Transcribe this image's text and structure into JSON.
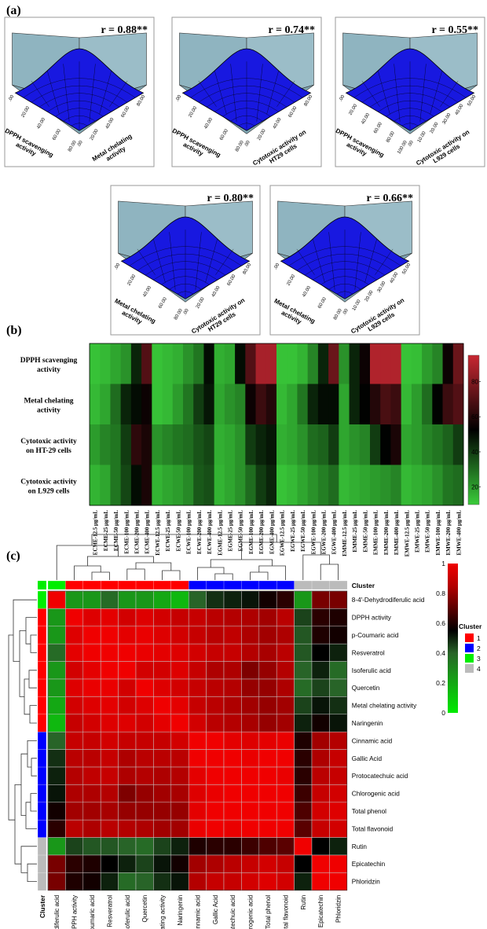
{
  "panel_a": {
    "label": "(a)",
    "plots": [
      {
        "r": "r = 0.88**",
        "x_label": [
          "DPPH scavenging",
          "activity"
        ],
        "y_label": [
          "Metal chelating",
          "activity"
        ],
        "x_ticks": [
          ".00",
          "20.00",
          "40.00",
          "60.00",
          "80.00"
        ],
        "y_ticks": [
          ".00",
          "20.00",
          "40.00",
          "60.00",
          "80.00"
        ]
      },
      {
        "r": "r = 0.74**",
        "x_label": [
          "DPPH scavenging",
          "activity"
        ],
        "y_label": [
          "Cytotoxic activity on",
          "HT29 cells"
        ],
        "x_ticks": [
          ".00",
          "20.00",
          "40.00",
          "60.00",
          "80.00"
        ],
        "y_ticks": [
          ".00",
          "20.00",
          "40.00",
          "60.00",
          "80.00"
        ]
      },
      {
        "r": "r = 0.55**",
        "x_label": [
          "DPPH scavenging",
          "activity"
        ],
        "y_label": [
          "Cytotoxic activity on",
          "L929 cells"
        ],
        "x_ticks": [
          ".00",
          "20.00",
          "40.00",
          "60.00",
          "80.00",
          "100.00"
        ],
        "y_ticks": [
          ".00",
          "10.00",
          "20.00",
          "30.00",
          "40.00",
          "50.00"
        ]
      },
      {
        "r": "r = 0.80**",
        "x_label": [
          "Metal chelating",
          "activity"
        ],
        "y_label": [
          "Cytotoxic activity on",
          "HT29 cells"
        ],
        "x_ticks": [
          ".00",
          "20.00",
          "40.00",
          "60.00",
          "80.00"
        ],
        "y_ticks": [
          ".00",
          "20.00",
          "40.00",
          "60.00",
          "80.00"
        ]
      },
      {
        "r": "r = 0.66**",
        "x_label": [
          "Metal chelating",
          "activity"
        ],
        "y_label": [
          "Cytotoxic activity on",
          "L929 cells"
        ],
        "x_ticks": [
          ".00",
          "20.00",
          "40.00",
          "60.00",
          "80.00"
        ],
        "y_ticks": [
          ".00",
          "10.00",
          "20.00",
          "30.00",
          "40.00",
          "50.00"
        ]
      }
    ]
  },
  "panel_b": {
    "label": "(b)"
  },
  "panel_c": {
    "label": "(c)"
  },
  "chart_data": [
    {
      "type": "heatmap",
      "title": "(b)",
      "rows": [
        [
          "DPPH scavenging",
          "activity"
        ],
        [
          "Metal chelating",
          "activity"
        ],
        [
          "Cytotoxic activity",
          "on HT-29 cells"
        ],
        [
          "Cytotoxic activity",
          "on L929 cells"
        ]
      ],
      "columns": [
        "ECME-12.5 µg/mL",
        "ECME-25 µg/mL",
        "ECME-50 µg/mL",
        "ECME-100 µg/mL",
        "ECME-200 µg/mL",
        "ECME-400 µg/mL",
        "ECWE-12.5 µg/mL",
        "ECWE-25 µg/mL",
        "ECWE-50 µg/mL",
        "ECWE-100 µg/mL",
        "ECWE-200 µg/mL",
        "ECWE-400 µg/mL",
        "EGME-12.5 µg/mL",
        "EGME-25 µg/mL",
        "EGME-50 µg/mL",
        "EGME-100 µg/mL",
        "EGME-200 µg/mL",
        "EGME-400 µg/mL",
        "EGWE-12.5 µg/mL",
        "EGWE-25 µg/mL",
        "EGWE-50 µg/mL",
        "EGWE-100 µg/mL",
        "EGWE-200 µg/mL",
        "EGWE-400 µg/mL",
        "EMME-12.5 µg/mL",
        "EMME-25 µg/mL",
        "EMME-50 µg/mL",
        "EMME-100 µg/mL",
        "EMME-200 µg/mL",
        "EMME-400 µg/mL",
        "EMWE-12.5 µg/mL",
        "EMWE-25 µg/mL",
        "EMWE-50 µg/mL",
        "EMWE-100 µg/mL",
        "EMWE-200 µg/mL",
        "EMWE-400 µg/mL"
      ],
      "values": [
        [
          12,
          14,
          18,
          22,
          45,
          70,
          12,
          14,
          16,
          22,
          28,
          50,
          16,
          18,
          50,
          70,
          88,
          88,
          12,
          12,
          15,
          25,
          45,
          75,
          22,
          45,
          55,
          90,
          90,
          90,
          12,
          13,
          20,
          25,
          55,
          75
        ],
        [
          14,
          18,
          30,
          45,
          50,
          55,
          12,
          14,
          20,
          28,
          40,
          48,
          18,
          22,
          25,
          55,
          65,
          60,
          14,
          18,
          28,
          45,
          50,
          50,
          18,
          45,
          52,
          60,
          68,
          65,
          14,
          20,
          30,
          52,
          65,
          70
        ],
        [
          20,
          25,
          28,
          40,
          62,
          58,
          22,
          25,
          28,
          30,
          35,
          38,
          16,
          18,
          22,
          40,
          45,
          48,
          16,
          18,
          22,
          30,
          32,
          40,
          18,
          22,
          25,
          40,
          52,
          58,
          18,
          20,
          25,
          28,
          32,
          40
        ],
        [
          15,
          18,
          28,
          38,
          50,
          58,
          15,
          18,
          20,
          24,
          34,
          36,
          15,
          18,
          22,
          30,
          40,
          45,
          12,
          14,
          18,
          22,
          26,
          30,
          14,
          16,
          18,
          20,
          22,
          25,
          14,
          16,
          18,
          22,
          28,
          30
        ]
      ],
      "colorbar": {
        "ticks": [
          20,
          40,
          60,
          80
        ],
        "range": [
          10,
          95
        ]
      }
    },
    {
      "type": "heatmap",
      "title": "(c)",
      "labels": [
        "8-4'-Dehydrodiferulic acid",
        "DPPH activity",
        "p-Coumaric acid",
        "Resveratrol",
        "Isoferulic acid",
        "Quercetin",
        "Metal chelating activity",
        "Naringenin",
        "Cinnamic acid",
        "Gallic Acid",
        "Protocatechuic acid",
        "Chlorogenic acid",
        "Total phenol",
        "Total flavonoid",
        "Rutin",
        "Epicatechin",
        "Phloridzin"
      ],
      "clusters": [
        3,
        1,
        1,
        1,
        1,
        1,
        1,
        1,
        2,
        2,
        2,
        2,
        2,
        2,
        4,
        4,
        4
      ],
      "values": [
        [
          1.0,
          0.25,
          0.25,
          0.38,
          0.25,
          0.25,
          0.2,
          0.15,
          0.4,
          0.48,
          0.5,
          0.52,
          0.58,
          0.62,
          0.25,
          0.75,
          0.75
        ],
        [
          0.25,
          1.0,
          0.92,
          0.93,
          0.9,
          0.92,
          0.9,
          0.88,
          0.88,
          0.86,
          0.85,
          0.84,
          0.82,
          0.86,
          0.45,
          0.62,
          0.6
        ],
        [
          0.25,
          0.92,
          1.0,
          0.95,
          0.93,
          0.94,
          0.92,
          0.9,
          0.88,
          0.86,
          0.87,
          0.84,
          0.82,
          0.84,
          0.42,
          0.6,
          0.58
        ],
        [
          0.38,
          0.93,
          0.95,
          1.0,
          0.95,
          0.94,
          0.93,
          0.92,
          0.9,
          0.88,
          0.88,
          0.85,
          0.83,
          0.86,
          0.42,
          0.55,
          0.5
        ],
        [
          0.25,
          0.9,
          0.93,
          0.95,
          1.0,
          0.9,
          0.9,
          0.92,
          0.88,
          0.84,
          0.84,
          0.76,
          0.8,
          0.85,
          0.4,
          0.5,
          0.38
        ],
        [
          0.25,
          0.92,
          0.94,
          0.94,
          0.9,
          1.0,
          0.92,
          0.9,
          0.88,
          0.86,
          0.85,
          0.8,
          0.8,
          0.84,
          0.38,
          0.45,
          0.4
        ],
        [
          0.2,
          0.9,
          0.92,
          0.93,
          0.9,
          0.92,
          1.0,
          0.93,
          0.88,
          0.86,
          0.84,
          0.82,
          0.8,
          0.82,
          0.45,
          0.52,
          0.48
        ],
        [
          0.15,
          0.88,
          0.9,
          0.92,
          0.92,
          0.9,
          0.93,
          1.0,
          0.9,
          0.86,
          0.85,
          0.83,
          0.8,
          0.82,
          0.5,
          0.58,
          0.52
        ],
        [
          0.4,
          0.88,
          0.88,
          0.9,
          0.88,
          0.88,
          0.88,
          0.9,
          1.0,
          0.95,
          0.93,
          0.92,
          0.93,
          0.94,
          0.6,
          0.82,
          0.85
        ],
        [
          0.48,
          0.86,
          0.86,
          0.88,
          0.84,
          0.86,
          0.86,
          0.86,
          0.95,
          1.0,
          0.95,
          0.94,
          0.95,
          0.95,
          0.62,
          0.84,
          0.88
        ],
        [
          0.5,
          0.85,
          0.87,
          0.88,
          0.84,
          0.85,
          0.84,
          0.85,
          0.93,
          0.95,
          1.0,
          0.95,
          0.95,
          0.94,
          0.62,
          0.86,
          0.88
        ],
        [
          0.52,
          0.84,
          0.84,
          0.85,
          0.76,
          0.8,
          0.82,
          0.83,
          0.92,
          0.94,
          0.95,
          1.0,
          0.96,
          0.95,
          0.65,
          0.88,
          0.9
        ],
        [
          0.58,
          0.82,
          0.82,
          0.83,
          0.8,
          0.8,
          0.8,
          0.8,
          0.93,
          0.95,
          0.95,
          0.96,
          1.0,
          0.97,
          0.68,
          0.9,
          0.92
        ],
        [
          0.62,
          0.86,
          0.84,
          0.86,
          0.85,
          0.84,
          0.82,
          0.82,
          0.94,
          0.95,
          0.94,
          0.95,
          0.97,
          1.0,
          0.7,
          0.88,
          0.9
        ],
        [
          0.25,
          0.45,
          0.42,
          0.42,
          0.4,
          0.38,
          0.45,
          0.5,
          0.6,
          0.62,
          0.62,
          0.65,
          0.68,
          0.7,
          1.0,
          0.55,
          0.5
        ],
        [
          0.75,
          0.62,
          0.6,
          0.55,
          0.5,
          0.45,
          0.52,
          0.58,
          0.82,
          0.84,
          0.86,
          0.88,
          0.9,
          0.88,
          0.55,
          1.0,
          0.95
        ],
        [
          0.75,
          0.6,
          0.58,
          0.5,
          0.38,
          0.4,
          0.48,
          0.52,
          0.85,
          0.88,
          0.88,
          0.9,
          0.92,
          0.9,
          0.5,
          0.95,
          1.0
        ]
      ],
      "colorbar": {
        "ticks": [
          "0",
          "0.2",
          "0.4",
          "0.6",
          "0.8",
          "1"
        ],
        "range": [
          0,
          1
        ]
      },
      "cluster_legend": {
        "title": "Cluster",
        "entries": [
          "1",
          "2",
          "3",
          "4"
        ],
        "colors": [
          "#ff0000",
          "#0000ff",
          "#00ee00",
          "#bbbbbb"
        ]
      },
      "cluster_row_label": "Cluster"
    }
  ]
}
